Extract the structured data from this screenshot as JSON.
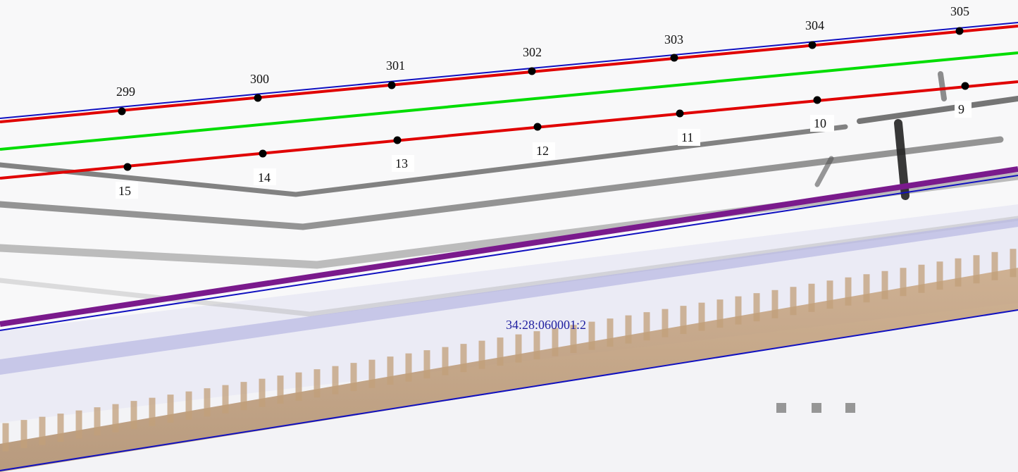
{
  "map": {
    "parcel_number": "34:28:060001:2",
    "boundary_points_upper": [
      {
        "label": "299"
      },
      {
        "label": "300"
      },
      {
        "label": "301"
      },
      {
        "label": "302"
      },
      {
        "label": "303"
      },
      {
        "label": "304"
      },
      {
        "label": "305"
      }
    ],
    "boundary_points_lower": [
      {
        "label": "15"
      },
      {
        "label": "14"
      },
      {
        "label": "13"
      },
      {
        "label": "12"
      },
      {
        "label": "11"
      },
      {
        "label": "10"
      },
      {
        "label": "9"
      }
    ],
    "line_colors": {
      "red_boundary": "#e00000",
      "blue_boundary": "#1010c0",
      "green_line": "#00dd00",
      "purple_line": "#7a1a8c"
    }
  }
}
